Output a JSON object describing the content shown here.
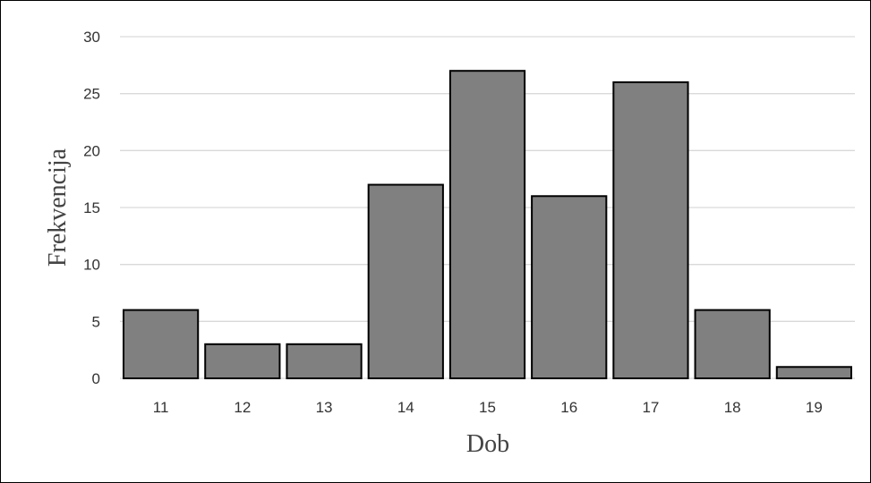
{
  "chart_data": {
    "type": "bar",
    "title": "",
    "xlabel": "Dob",
    "ylabel": "Frekvencija",
    "categories": [
      "11",
      "12",
      "13",
      "14",
      "15",
      "16",
      "17",
      "18",
      "19"
    ],
    "values": [
      6,
      3,
      3,
      17,
      27,
      16,
      26,
      6,
      1
    ],
    "ylim": [
      0,
      30
    ],
    "yticks": [
      "0",
      "5",
      "10",
      "15",
      "20",
      "25",
      "30"
    ],
    "grid": true,
    "legend": "none",
    "colors": {
      "bar_fill": "#808080",
      "bar_stroke": "#000000",
      "grid": "#d9d9d9"
    }
  }
}
